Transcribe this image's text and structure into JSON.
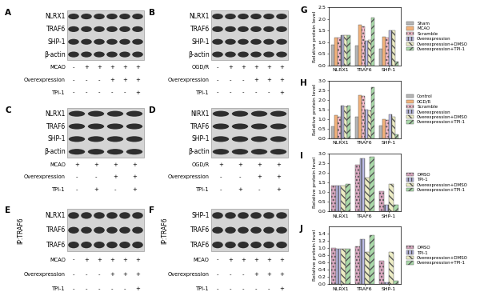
{
  "blots": [
    {
      "panel": "A",
      "bands": [
        "NLRX1",
        "TRAF6",
        "SHP-1",
        "β-actin"
      ],
      "conditions": [
        {
          "name": "MCAO",
          "marks": [
            "-",
            "+",
            "+",
            "+",
            "+",
            "+"
          ]
        },
        {
          "name": "Overexpression",
          "marks": [
            "-",
            "-",
            "-",
            "+",
            "+",
            "+"
          ]
        },
        {
          "name": "TPI-1",
          "marks": [
            "-",
            "-",
            "-",
            "-",
            "-",
            "+"
          ]
        }
      ]
    },
    {
      "panel": "B",
      "bands": [
        "NLRX1",
        "TRAF6",
        "SHP-1",
        "β-actin"
      ],
      "conditions": [
        {
          "name": "OGD/R",
          "marks": [
            "-",
            "+",
            "+",
            "+",
            "+",
            "+"
          ]
        },
        {
          "name": "Overexpression",
          "marks": [
            "-",
            "-",
            "-",
            "+",
            "+",
            "+"
          ]
        },
        {
          "name": "TPI-1",
          "marks": [
            "-",
            "-",
            "-",
            "-",
            "-",
            "+"
          ]
        }
      ]
    },
    {
      "panel": "C",
      "bands": [
        "NLRX1",
        "TRAF6",
        "SHP-1",
        "β-actin"
      ],
      "conditions": [
        {
          "name": "MCAO",
          "marks": [
            "+",
            "+",
            "+",
            "+"
          ]
        },
        {
          "name": "Overexpression",
          "marks": [
            "-",
            "-",
            "+",
            "+"
          ]
        },
        {
          "name": "TPI-1",
          "marks": [
            "-",
            "+",
            "-",
            "+"
          ]
        }
      ]
    },
    {
      "panel": "D",
      "bands": [
        "NlRX1",
        "TRAF6",
        "SHP-1",
        "β-actin"
      ],
      "conditions": [
        {
          "name": "OGD/R",
          "marks": [
            "+",
            "+",
            "+",
            "+"
          ]
        },
        {
          "name": "Overexpression",
          "marks": [
            "-",
            "-",
            "+",
            "+"
          ]
        },
        {
          "name": "TPI-1",
          "marks": [
            "-",
            "+",
            "-",
            "+"
          ]
        }
      ]
    },
    {
      "panel": "E",
      "ip": "IP:TRAF6",
      "bands": [
        "NLRX1",
        "TRAF6",
        "TRAF6"
      ],
      "conditions": [
        {
          "name": "MCAO",
          "marks": [
            "-",
            "+",
            "+",
            "+",
            "+",
            "+"
          ]
        },
        {
          "name": "Overexpression",
          "marks": [
            "-",
            "-",
            "-",
            "+",
            "+",
            "+"
          ]
        },
        {
          "name": "TPI-1",
          "marks": [
            "-",
            "-",
            "-",
            "-",
            "-",
            "+"
          ]
        }
      ]
    },
    {
      "panel": "F",
      "ip": "IP:TRAF6",
      "bands": [
        "SHP-1",
        "TRAF6",
        "TRAF6"
      ],
      "conditions": [
        {
          "name": "MCAO",
          "marks": [
            "-",
            "+",
            "+",
            "+",
            "+",
            "+"
          ]
        },
        {
          "name": "Overexpression",
          "marks": [
            "-",
            "-",
            "-",
            "+",
            "+",
            "+"
          ]
        },
        {
          "name": "TPI-1",
          "marks": [
            "-",
            "-",
            "-",
            "-",
            "-",
            "+"
          ]
        }
      ]
    }
  ],
  "chart_data": [
    {
      "panel": "G",
      "type": "bar",
      "ylabel": "Relative protein level",
      "categories": [
        "NLRX1",
        "TRAF6",
        "SHP-1"
      ],
      "ylim": [
        0.0,
        2.5
      ],
      "yticks": [
        0.0,
        0.5,
        1.0,
        1.5,
        2.0,
        2.5
      ],
      "legend": "center left",
      "series": [
        {
          "name": "Sham",
          "color": "#b5b5b5",
          "values": [
            0.9,
            0.85,
            0.7
          ]
        },
        {
          "name": "MCAO",
          "color": "#f2b27a",
          "values": [
            1.2,
            1.75,
            1.25
          ]
        },
        {
          "name": "Scramble",
          "color": "#f5bccb",
          "values": [
            1.2,
            1.7,
            1.2
          ]
        },
        {
          "name": "Overexpression",
          "color": "#bcbce8",
          "values": [
            1.3,
            1.05,
            1.5
          ]
        },
        {
          "name": "Overexpression+DMSO",
          "color": "#ececc4",
          "values": [
            1.3,
            1.1,
            1.5
          ]
        },
        {
          "name": "Overexpression+TPI-1",
          "color": "#a9d9a9",
          "values": [
            1.3,
            2.05,
            0.15
          ]
        }
      ]
    },
    {
      "panel": "H",
      "type": "bar",
      "ylabel": "Relative protein level",
      "categories": [
        "NLRX1",
        "TRAF6",
        "SHP-1"
      ],
      "ylim": [
        0.0,
        3.0
      ],
      "yticks": [
        0.0,
        0.5,
        1.0,
        1.5,
        2.0,
        2.5,
        3.0
      ],
      "legend": "center left",
      "series": [
        {
          "name": "Control",
          "color": "#b5b5b5",
          "values": [
            0.6,
            1.1,
            0.65
          ]
        },
        {
          "name": "OGD/R",
          "color": "#f2b27a",
          "values": [
            1.2,
            2.25,
            1.0
          ]
        },
        {
          "name": "Scramble",
          "color": "#f5bccb",
          "values": [
            1.1,
            2.2,
            0.95
          ]
        },
        {
          "name": "Overexpression",
          "color": "#bcbce8",
          "values": [
            1.7,
            1.5,
            1.25
          ]
        },
        {
          "name": "Overexpression+DMSO",
          "color": "#ececc4",
          "values": [
            1.65,
            1.45,
            1.1
          ]
        },
        {
          "name": "Overexpression+TPI-1",
          "color": "#a9d9a9",
          "values": [
            1.7,
            2.65,
            0.2
          ]
        }
      ]
    },
    {
      "panel": "I",
      "type": "bar",
      "ylabel": "Relative protein level",
      "categories": [
        "NLRX1",
        "TRAF6",
        "SHP-1"
      ],
      "ylim": [
        0.0,
        3.0
      ],
      "yticks": [
        0.0,
        0.5,
        1.0,
        1.5,
        2.0,
        2.5,
        3.0
      ],
      "legend": "center left",
      "series": [
        {
          "name": "DMSO",
          "color": "#d9a8c0",
          "values": [
            1.35,
            2.4,
            1.05
          ]
        },
        {
          "name": "TPI-1",
          "color": "#bcbce8",
          "values": [
            1.35,
            2.75,
            0.35
          ]
        },
        {
          "name": "Overexpression+DMSO",
          "color": "#ececc4",
          "values": [
            1.35,
            1.75,
            1.4
          ]
        },
        {
          "name": "Overexpression+TPI-1",
          "color": "#a9d9a9",
          "values": [
            1.4,
            2.85,
            0.35
          ]
        }
      ]
    },
    {
      "panel": "J",
      "type": "bar",
      "ylabel": "Relative protein level",
      "categories": [
        "NLRX1",
        "TRAF6",
        "SHP-1"
      ],
      "ylim": [
        0.0,
        1.6
      ],
      "yticks": [
        0.0,
        0.2,
        0.4,
        0.6,
        0.8,
        1.0,
        1.2,
        1.4
      ],
      "legend": "center left",
      "series": [
        {
          "name": "DMSO",
          "color": "#d9a8c0",
          "values": [
            1.0,
            1.05,
            0.65
          ]
        },
        {
          "name": "TPI-1",
          "color": "#bcbce8",
          "values": [
            0.98,
            1.25,
            0.05
          ]
        },
        {
          "name": "Overexpression+DMSO",
          "color": "#ececc4",
          "values": [
            0.98,
            0.9,
            0.9
          ]
        },
        {
          "name": "Overexpression+TPI-1",
          "color": "#a9d9a9",
          "values": [
            0.98,
            1.35,
            0.1
          ]
        }
      ]
    }
  ]
}
